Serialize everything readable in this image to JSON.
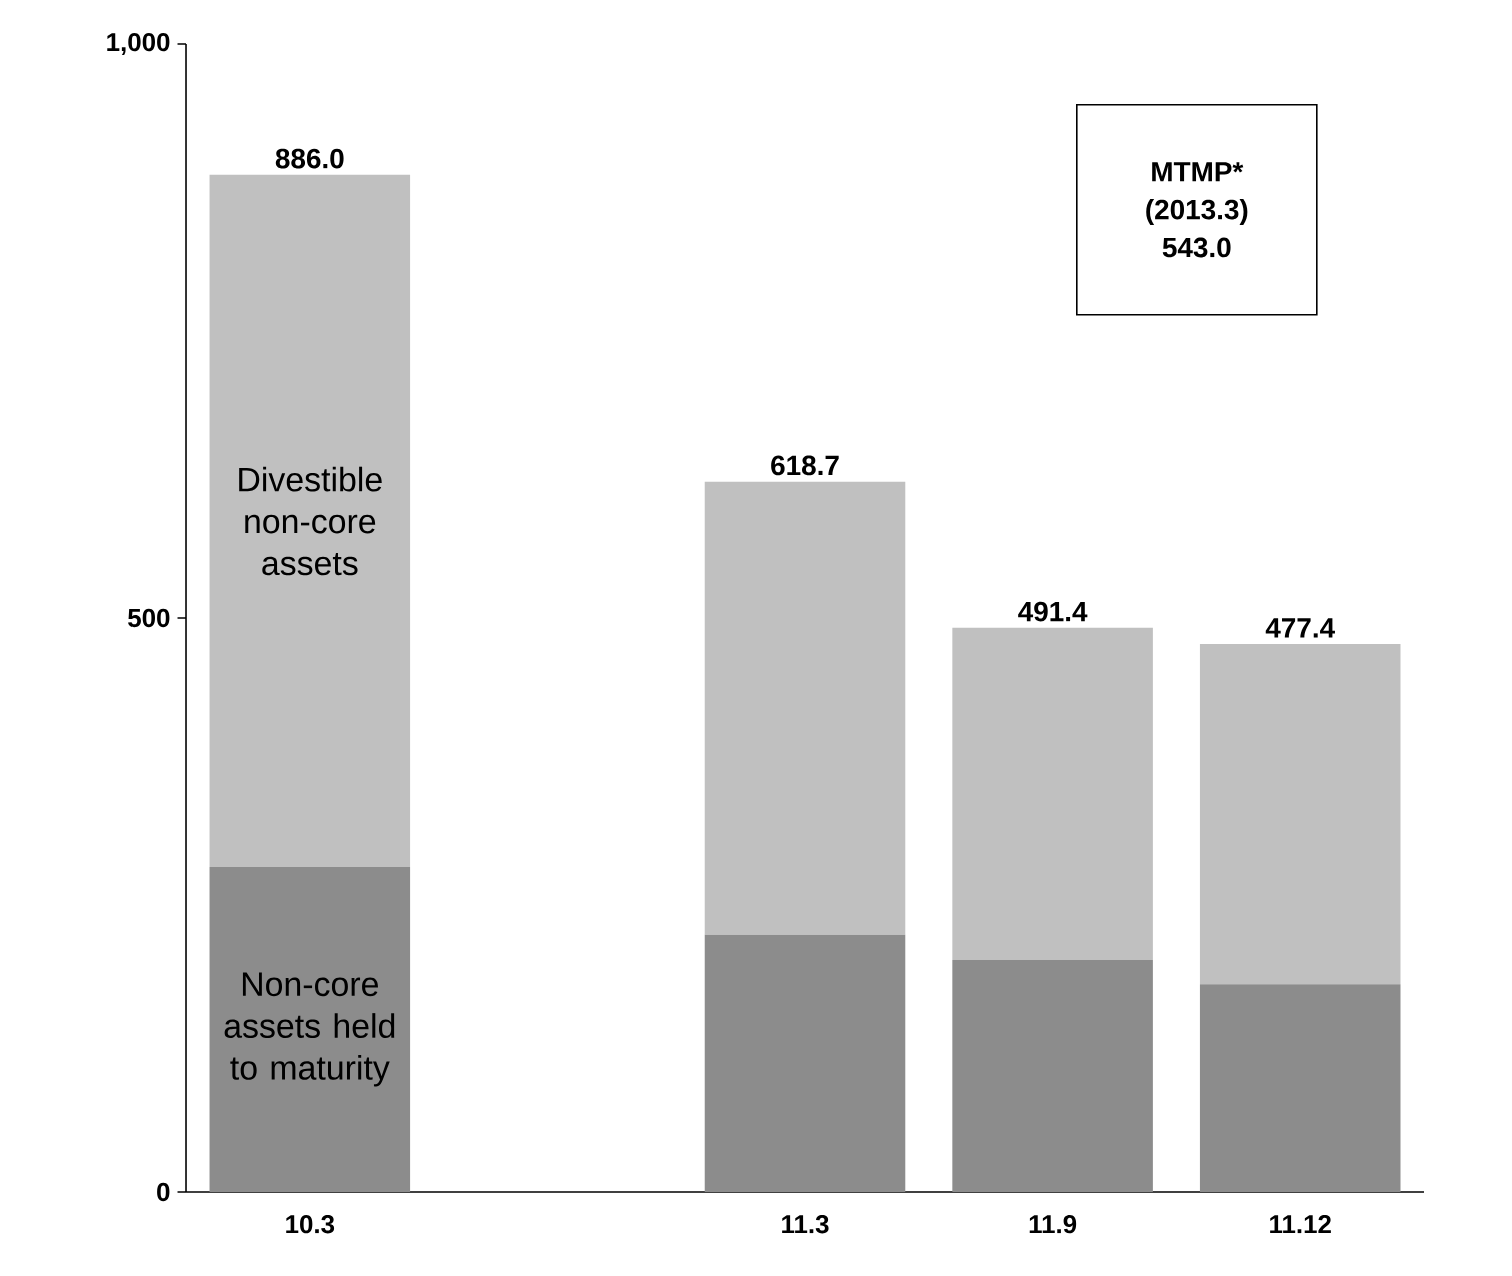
{
  "chart_data": {
    "type": "bar",
    "stacked": true,
    "legend": false,
    "categories": [
      "10.3",
      null,
      "11.3",
      "11.9",
      "11.12"
    ],
    "series": [
      {
        "name": "Non-core assets held to maturity",
        "color": "#8c8c8c",
        "values": [
          283,
          null,
          224,
          202,
          181
        ]
      },
      {
        "name": "Divestible non-core assets",
        "color": "#c0c0c0",
        "values": [
          603,
          null,
          394.7,
          289.4,
          296.4
        ]
      }
    ],
    "totals": [
      "886.0",
      null,
      "618.7",
      "491.4",
      "477.4"
    ],
    "ylim": [
      0,
      1000
    ],
    "yticks": [
      0,
      500,
      {
        "value": 1000,
        "label": "1,000"
      }
    ],
    "annotations": [
      "MTMP* (2013.3) 543.0"
    ]
  }
}
